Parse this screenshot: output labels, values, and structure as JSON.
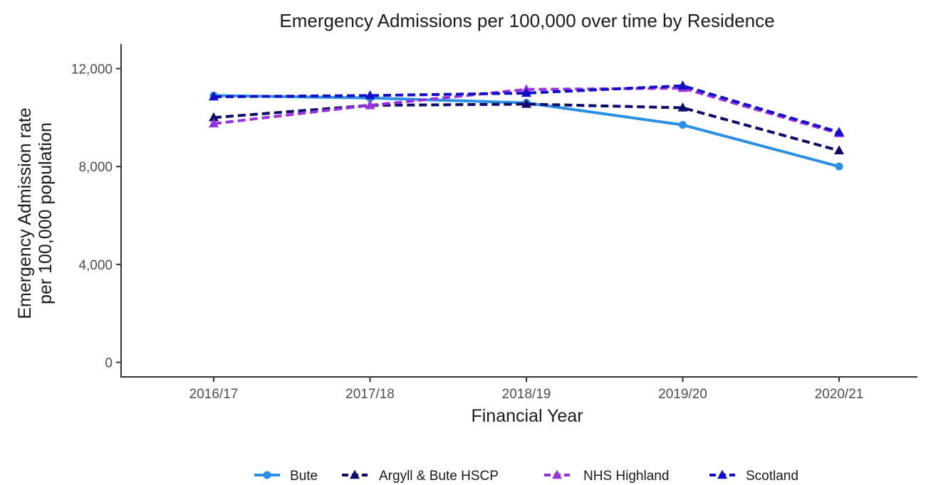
{
  "chart_data": {
    "type": "line",
    "title": "Emergency Admissions per 100,000 over time by Residence",
    "xlabel": "Financial Year",
    "ylabel_lines": [
      "Emergency Admission rate",
      "per 100,000 population"
    ],
    "categories": [
      "2016/17",
      "2017/18",
      "2018/19",
      "2019/20",
      "2020/21"
    ],
    "ylim": [
      0,
      13000
    ],
    "yticks": [
      0,
      4000,
      8000,
      12000
    ],
    "ytick_labels": [
      "0",
      "4,000",
      "8,000",
      "12,000"
    ],
    "grid": false,
    "legend_position": "bottom",
    "series": [
      {
        "name": "Bute",
        "values": [
          10900,
          10800,
          10600,
          9700,
          8000
        ],
        "color": "#2b8fe3",
        "dash": "solid",
        "marker": "circle"
      },
      {
        "name": "Argyll & Bute HSCP",
        "values": [
          10000,
          10500,
          10550,
          10400,
          8650
        ],
        "color": "#0c0c6b",
        "dash": "dashed",
        "marker": "triangle"
      },
      {
        "name": "NHS Highland",
        "values": [
          9750,
          10500,
          11150,
          11200,
          9350
        ],
        "color": "#9b30e0",
        "dash": "dashed",
        "marker": "triangle"
      },
      {
        "name": "Scotland",
        "values": [
          10850,
          10900,
          11000,
          11300,
          9400
        ],
        "color": "#1010c8",
        "dash": "dashed",
        "marker": "triangle"
      }
    ]
  }
}
